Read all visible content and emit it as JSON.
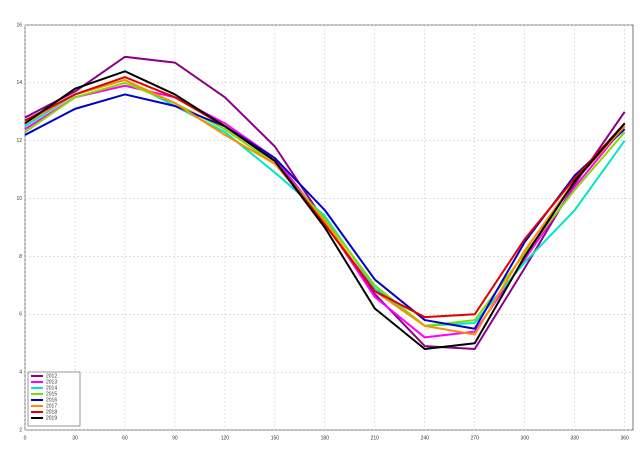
{
  "chart_data": {
    "type": "line",
    "x": [
      0,
      30,
      60,
      90,
      120,
      150,
      180,
      210,
      240,
      270,
      300,
      330,
      360
    ],
    "xlim": [
      0,
      365
    ],
    "xticks": [
      0,
      30,
      60,
      90,
      120,
      150,
      180,
      210,
      240,
      270,
      300,
      330,
      360
    ],
    "ylim": [
      2,
      16
    ],
    "yticks": [
      2,
      4,
      6,
      8,
      10,
      12,
      14,
      16
    ],
    "grid": true,
    "legend": "lower-left",
    "series": [
      {
        "name": "2012",
        "color": "#8b008b",
        "values": [
          12.8,
          13.7,
          14.9,
          14.7,
          13.5,
          11.8,
          9.2,
          6.7,
          4.9,
          4.8,
          7.6,
          10.5,
          13.0
        ]
      },
      {
        "name": "2013",
        "color": "#ff00ff",
        "values": [
          12.4,
          13.5,
          13.9,
          13.5,
          12.6,
          11.4,
          9.2,
          6.6,
          5.2,
          5.4,
          7.9,
          10.4,
          12.5
        ]
      },
      {
        "name": "2014",
        "color": "#00e5cc",
        "values": [
          12.5,
          13.6,
          14.1,
          13.2,
          12.3,
          10.9,
          9.4,
          6.9,
          5.6,
          5.7,
          7.8,
          9.6,
          12.0
        ]
      },
      {
        "name": "2015",
        "color": "#7fdc00",
        "values": [
          12.3,
          13.5,
          14.0,
          13.3,
          12.4,
          11.2,
          9.3,
          7.0,
          5.6,
          5.8,
          8.1,
          10.3,
          12.3
        ]
      },
      {
        "name": "2016",
        "color": "#0000cd",
        "values": [
          12.2,
          13.1,
          13.6,
          13.2,
          12.5,
          11.4,
          9.6,
          7.2,
          5.8,
          5.5,
          8.5,
          10.8,
          12.4
        ]
      },
      {
        "name": "2017",
        "color": "#ff8c00",
        "values": [
          12.6,
          13.6,
          14.1,
          13.3,
          12.2,
          11.2,
          9.2,
          6.8,
          5.6,
          5.3,
          8.2,
          10.6,
          12.5
        ]
      },
      {
        "name": "2018",
        "color": "#e00000",
        "values": [
          12.7,
          13.6,
          14.2,
          13.5,
          12.5,
          11.3,
          9.1,
          6.8,
          5.9,
          6.0,
          8.6,
          10.7,
          12.6
        ]
      },
      {
        "name": "2019",
        "color": "#000000",
        "values": [
          12.6,
          13.8,
          14.4,
          13.6,
          12.5,
          11.3,
          9.0,
          6.2,
          4.8,
          5.0,
          8.0,
          10.6,
          12.6
        ]
      }
    ]
  }
}
